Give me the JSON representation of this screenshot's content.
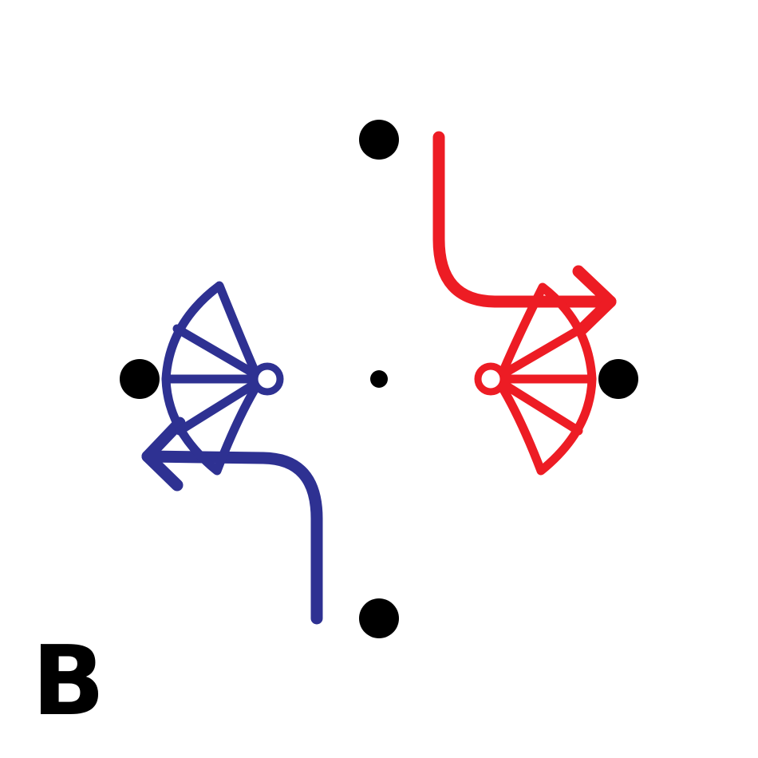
{
  "label": "B"
}
